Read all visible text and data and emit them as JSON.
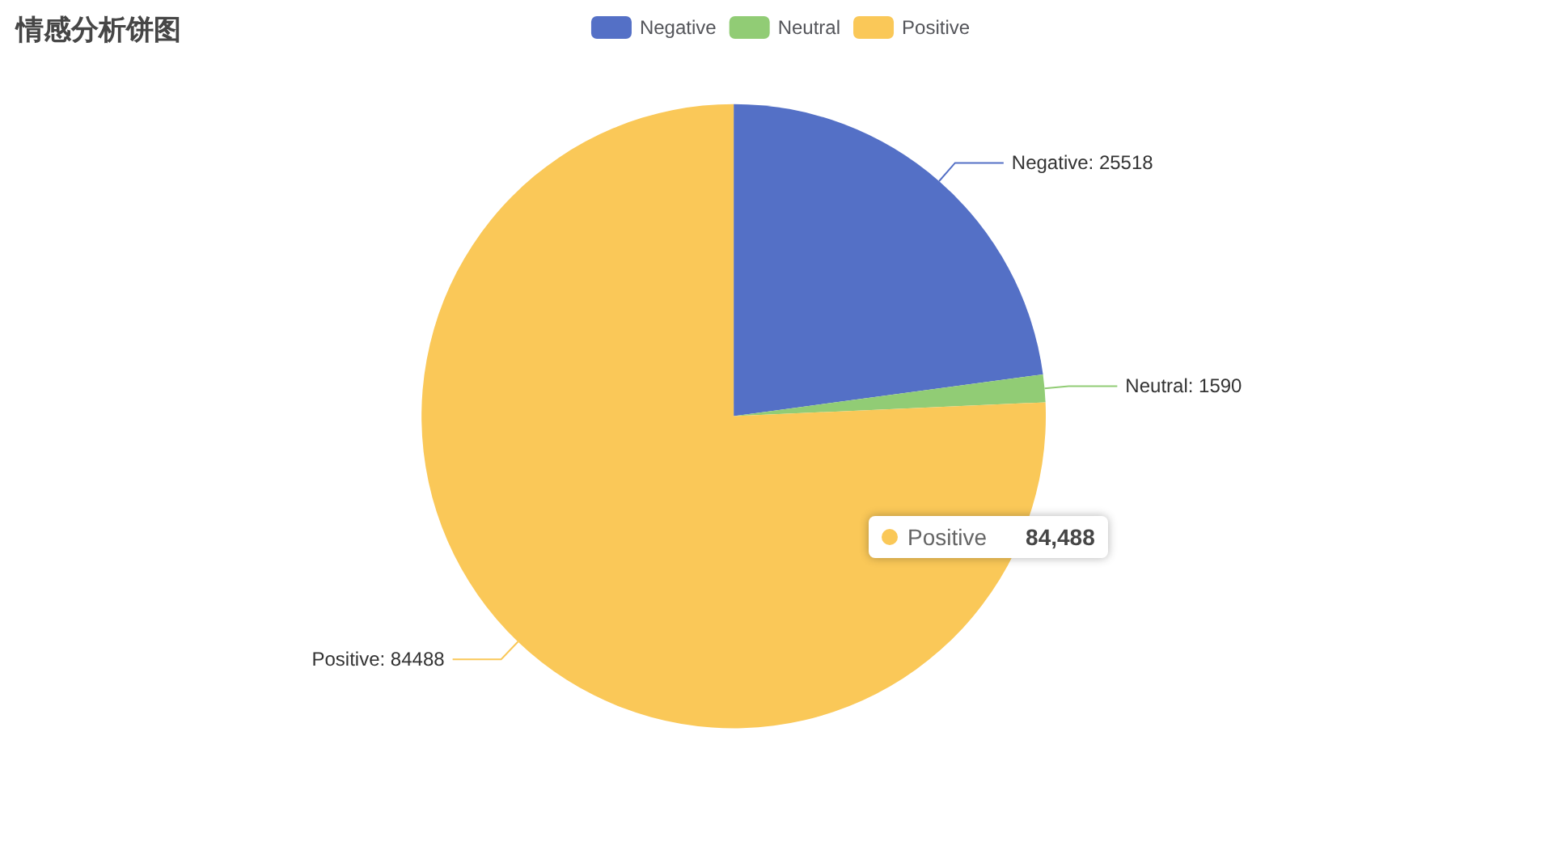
{
  "chart_data": {
    "type": "pie",
    "title": "情感分析饼图",
    "categories": [
      "Negative",
      "Neutral",
      "Positive"
    ],
    "values": [
      25518,
      1590,
      84488
    ],
    "colors": [
      "#5470c6",
      "#91cc75",
      "#fac858"
    ],
    "legend": "top",
    "value_labels": [
      "Negative: 25518",
      "Neutral: 1590",
      "Positive: 84488"
    ],
    "annotations": [
      "Positive",
      "84,488"
    ]
  }
}
